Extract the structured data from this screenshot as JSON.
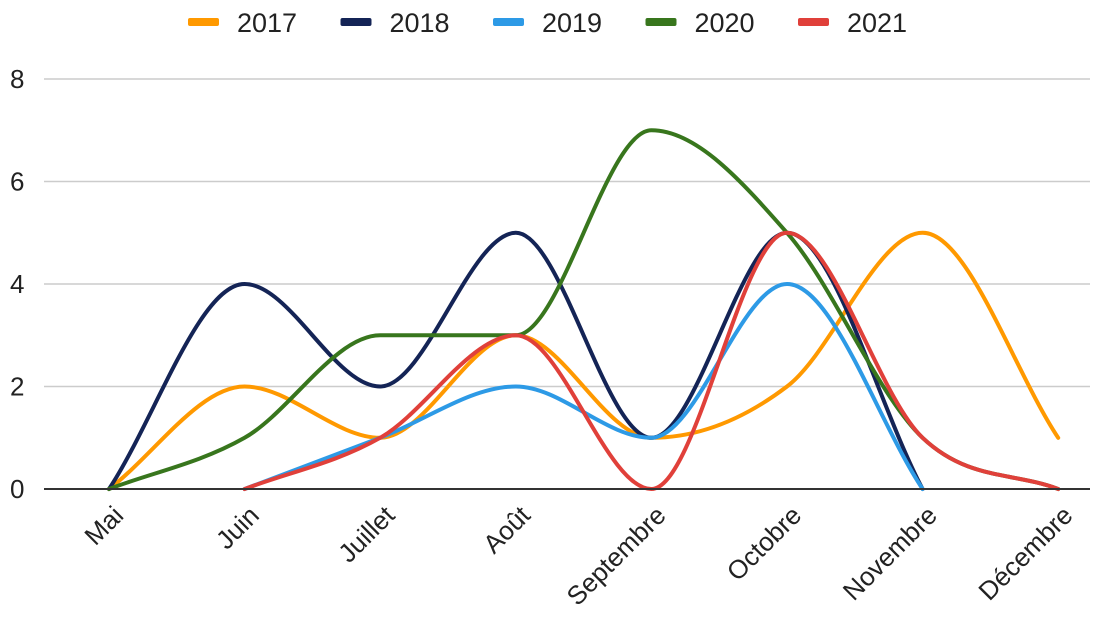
{
  "chart_data": {
    "type": "line",
    "smooth": true,
    "categories": [
      "Mai",
      "Juin",
      "Juillet",
      "Août",
      "Septembre",
      "Octobre",
      "Novembre",
      "Décembre"
    ],
    "ylim": [
      0,
      8
    ],
    "yticks": [
      0,
      2,
      4,
      6,
      8
    ],
    "grid": true,
    "legend_position": "top",
    "series": [
      {
        "name": "2017",
        "color": "#ff9900",
        "values": [
          0,
          2,
          1,
          3,
          1,
          2,
          5,
          1
        ]
      },
      {
        "name": "2018",
        "color": "#142456",
        "values": [
          0,
          4,
          2,
          5,
          1,
          5,
          0,
          null
        ]
      },
      {
        "name": "2019",
        "color": "#2d9ae6",
        "values": [
          null,
          0,
          1,
          2,
          1,
          4,
          0,
          null
        ]
      },
      {
        "name": "2020",
        "color": "#38761d",
        "values": [
          0,
          1,
          3,
          3,
          7,
          5,
          1,
          0
        ]
      },
      {
        "name": "2021",
        "color": "#e0403a",
        "values": [
          null,
          0,
          1,
          3,
          0,
          5,
          1,
          0
        ]
      }
    ]
  }
}
